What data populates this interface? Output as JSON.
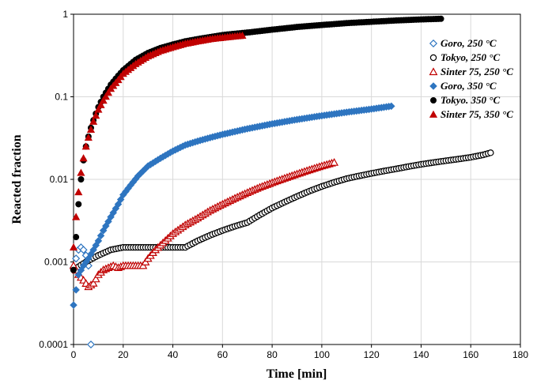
{
  "chart_data": {
    "type": "scatter",
    "xlabel": "Time [min]",
    "ylabel": "Reacted fraction",
    "xlim": [
      0,
      180
    ],
    "ylim": [
      0.0001,
      1
    ],
    "y_scale": "log",
    "x_ticks": [
      "0",
      "20",
      "40",
      "60",
      "80",
      "100",
      "120",
      "140",
      "160",
      "180"
    ],
    "y_ticks": [
      "0.0001",
      "0.001",
      "0.01",
      "0.1",
      "1"
    ],
    "grid": true,
    "legend_position": "right",
    "series": [
      {
        "name": "Goro, 250 °C",
        "color": "#2e75c0",
        "marker": "diamond-open",
        "x": [
          0,
          1,
          2,
          3,
          4,
          5,
          6,
          7
        ],
        "y": [
          0.00085,
          0.0011,
          0.0014,
          0.0015,
          0.0014,
          0.0012,
          0.0009,
          0.0001
        ]
      },
      {
        "name": "Tokyo, 250 °C",
        "color": "#000000",
        "marker": "circle-open",
        "x": [
          0,
          5,
          10,
          15,
          20,
          25,
          30,
          35,
          40,
          45,
          50,
          55,
          60,
          65,
          70,
          75,
          80,
          85,
          90,
          95,
          100,
          105,
          110,
          115,
          120,
          125,
          130,
          135,
          140,
          145,
          150,
          155,
          160,
          165,
          168
        ],
        "y": [
          0.0008,
          0.001,
          0.0012,
          0.0014,
          0.0015,
          0.0015,
          0.0015,
          0.0015,
          0.0015,
          0.0015,
          0.0018,
          0.0021,
          0.0024,
          0.0027,
          0.003,
          0.0037,
          0.0045,
          0.0053,
          0.0062,
          0.0072,
          0.0082,
          0.0092,
          0.0102,
          0.011,
          0.0118,
          0.0126,
          0.0134,
          0.0143,
          0.0152,
          0.016,
          0.0168,
          0.0176,
          0.0185,
          0.0198,
          0.021
        ]
      },
      {
        "name": "Sinter 75, 250 °C",
        "color": "#c00000",
        "marker": "triangle-open",
        "x": [
          0,
          2,
          4,
          6,
          8,
          10,
          12,
          14,
          16,
          18,
          20,
          22,
          25,
          28,
          30,
          33,
          36,
          40,
          45,
          50,
          55,
          60,
          65,
          70,
          75,
          80,
          85,
          90,
          95,
          100,
          105
        ],
        "y": [
          0.0009,
          0.0007,
          0.0006,
          0.0005,
          0.00055,
          0.0007,
          0.0008,
          0.00085,
          0.0009,
          0.00085,
          0.0009,
          0.0009,
          0.0009,
          0.0009,
          0.0011,
          0.0014,
          0.0017,
          0.0022,
          0.0028,
          0.0034,
          0.0042,
          0.005,
          0.0059,
          0.0069,
          0.008,
          0.0091,
          0.0103,
          0.0116,
          0.013,
          0.0145,
          0.016
        ]
      },
      {
        "name": "Goro, 350 °C",
        "color": "#2e75c0",
        "marker": "diamond-filled",
        "x": [
          0,
          2,
          4,
          6,
          8,
          10,
          12,
          15,
          18,
          20,
          23,
          26,
          30,
          35,
          40,
          45,
          50,
          55,
          60,
          70,
          80,
          90,
          100,
          110,
          120,
          128
        ],
        "y": [
          0.0003,
          0.0007,
          0.0009,
          0.0011,
          0.0014,
          0.0018,
          0.0024,
          0.0035,
          0.005,
          0.0065,
          0.0085,
          0.011,
          0.0145,
          0.018,
          0.022,
          0.026,
          0.029,
          0.032,
          0.035,
          0.041,
          0.047,
          0.053,
          0.059,
          0.065,
          0.071,
          0.077
        ]
      },
      {
        "name": "Tokyo. 350 °C",
        "color": "#000000",
        "marker": "circle-filled",
        "x": [
          0,
          1,
          2,
          3,
          4,
          5,
          6,
          7,
          8,
          10,
          12,
          15,
          18,
          20,
          25,
          30,
          35,
          40,
          45,
          50,
          55,
          60,
          65,
          70,
          80,
          90,
          100,
          110,
          120,
          130,
          140,
          148
        ],
        "y": [
          0.0008,
          0.002,
          0.005,
          0.01,
          0.017,
          0.025,
          0.033,
          0.042,
          0.052,
          0.075,
          0.1,
          0.14,
          0.18,
          0.21,
          0.28,
          0.34,
          0.39,
          0.43,
          0.47,
          0.5,
          0.53,
          0.56,
          0.58,
          0.6,
          0.65,
          0.7,
          0.74,
          0.78,
          0.81,
          0.84,
          0.865,
          0.88
        ]
      },
      {
        "name": "Sinter 75, 350 °C",
        "color": "#c00000",
        "marker": "triangle-filled",
        "x": [
          0,
          1,
          2,
          3,
          4,
          5,
          6,
          7,
          8,
          10,
          12,
          15,
          18,
          20,
          25,
          30,
          35,
          40,
          45,
          50,
          55,
          60,
          65,
          68
        ],
        "y": [
          0.0015,
          0.0035,
          0.007,
          0.012,
          0.018,
          0.025,
          0.032,
          0.04,
          0.05,
          0.07,
          0.09,
          0.125,
          0.16,
          0.19,
          0.25,
          0.31,
          0.36,
          0.4,
          0.44,
          0.47,
          0.5,
          0.52,
          0.54,
          0.55
        ]
      }
    ]
  }
}
